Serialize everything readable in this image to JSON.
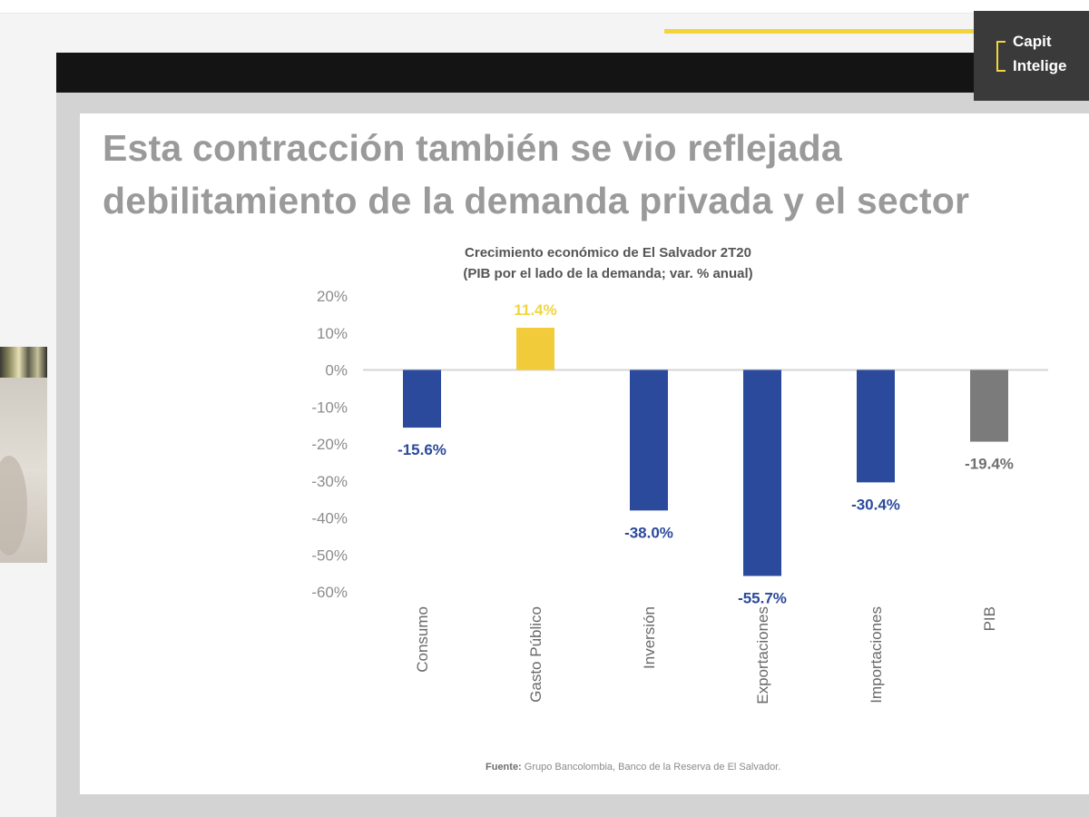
{
  "slide": {
    "headline_line1": "Esta   contracción   también   se   vio   reflejada",
    "headline_line2": "debilitamiento de la demanda privada y el sector",
    "logo_line1": "Capit",
    "logo_line2": "Intelige",
    "source_label": "Fuente:",
    "source_text": "Grupo Bancolombia, Banco de la Reserva de El Salvador."
  },
  "colors": {
    "bar_blue": "#2b4a9b",
    "bar_yellow": "#f2cb3a",
    "bar_gray": "#7b7b7b",
    "label_blue": "#2b4a9b",
    "label_yellow": "#f2d53c",
    "label_gray": "#707070",
    "accent": "#f2d53c"
  },
  "chart_data": {
    "type": "bar",
    "title": "Crecimiento económico de El Salvador 2T20",
    "subtitle": "(PIB por el lado de la demanda; var. % anual)",
    "categories": [
      "Consumo",
      "Gasto Público",
      "Inversión",
      "Exportaciones",
      "Importaciones",
      "PIB"
    ],
    "values": [
      -15.6,
      11.4,
      -38.0,
      -55.7,
      -30.4,
      -19.4
    ],
    "data_labels": [
      "-15.6%",
      "11.4%",
      "-38.0%",
      "-55.7%",
      "-30.4%",
      "-19.4%"
    ],
    "bar_colors": [
      "blue",
      "yellow",
      "blue",
      "blue",
      "blue",
      "gray"
    ],
    "y_ticks": [
      20,
      10,
      0,
      -10,
      -20,
      -30,
      -40,
      -50,
      -60
    ],
    "y_tick_labels": [
      "20%",
      "10%",
      "0%",
      "-10%",
      "-20%",
      "-30%",
      "-40%",
      "-50%",
      "-60%"
    ],
    "ylim": [
      -60,
      20
    ],
    "grid": false,
    "legend": "none",
    "xlabel": "",
    "ylabel": ""
  }
}
